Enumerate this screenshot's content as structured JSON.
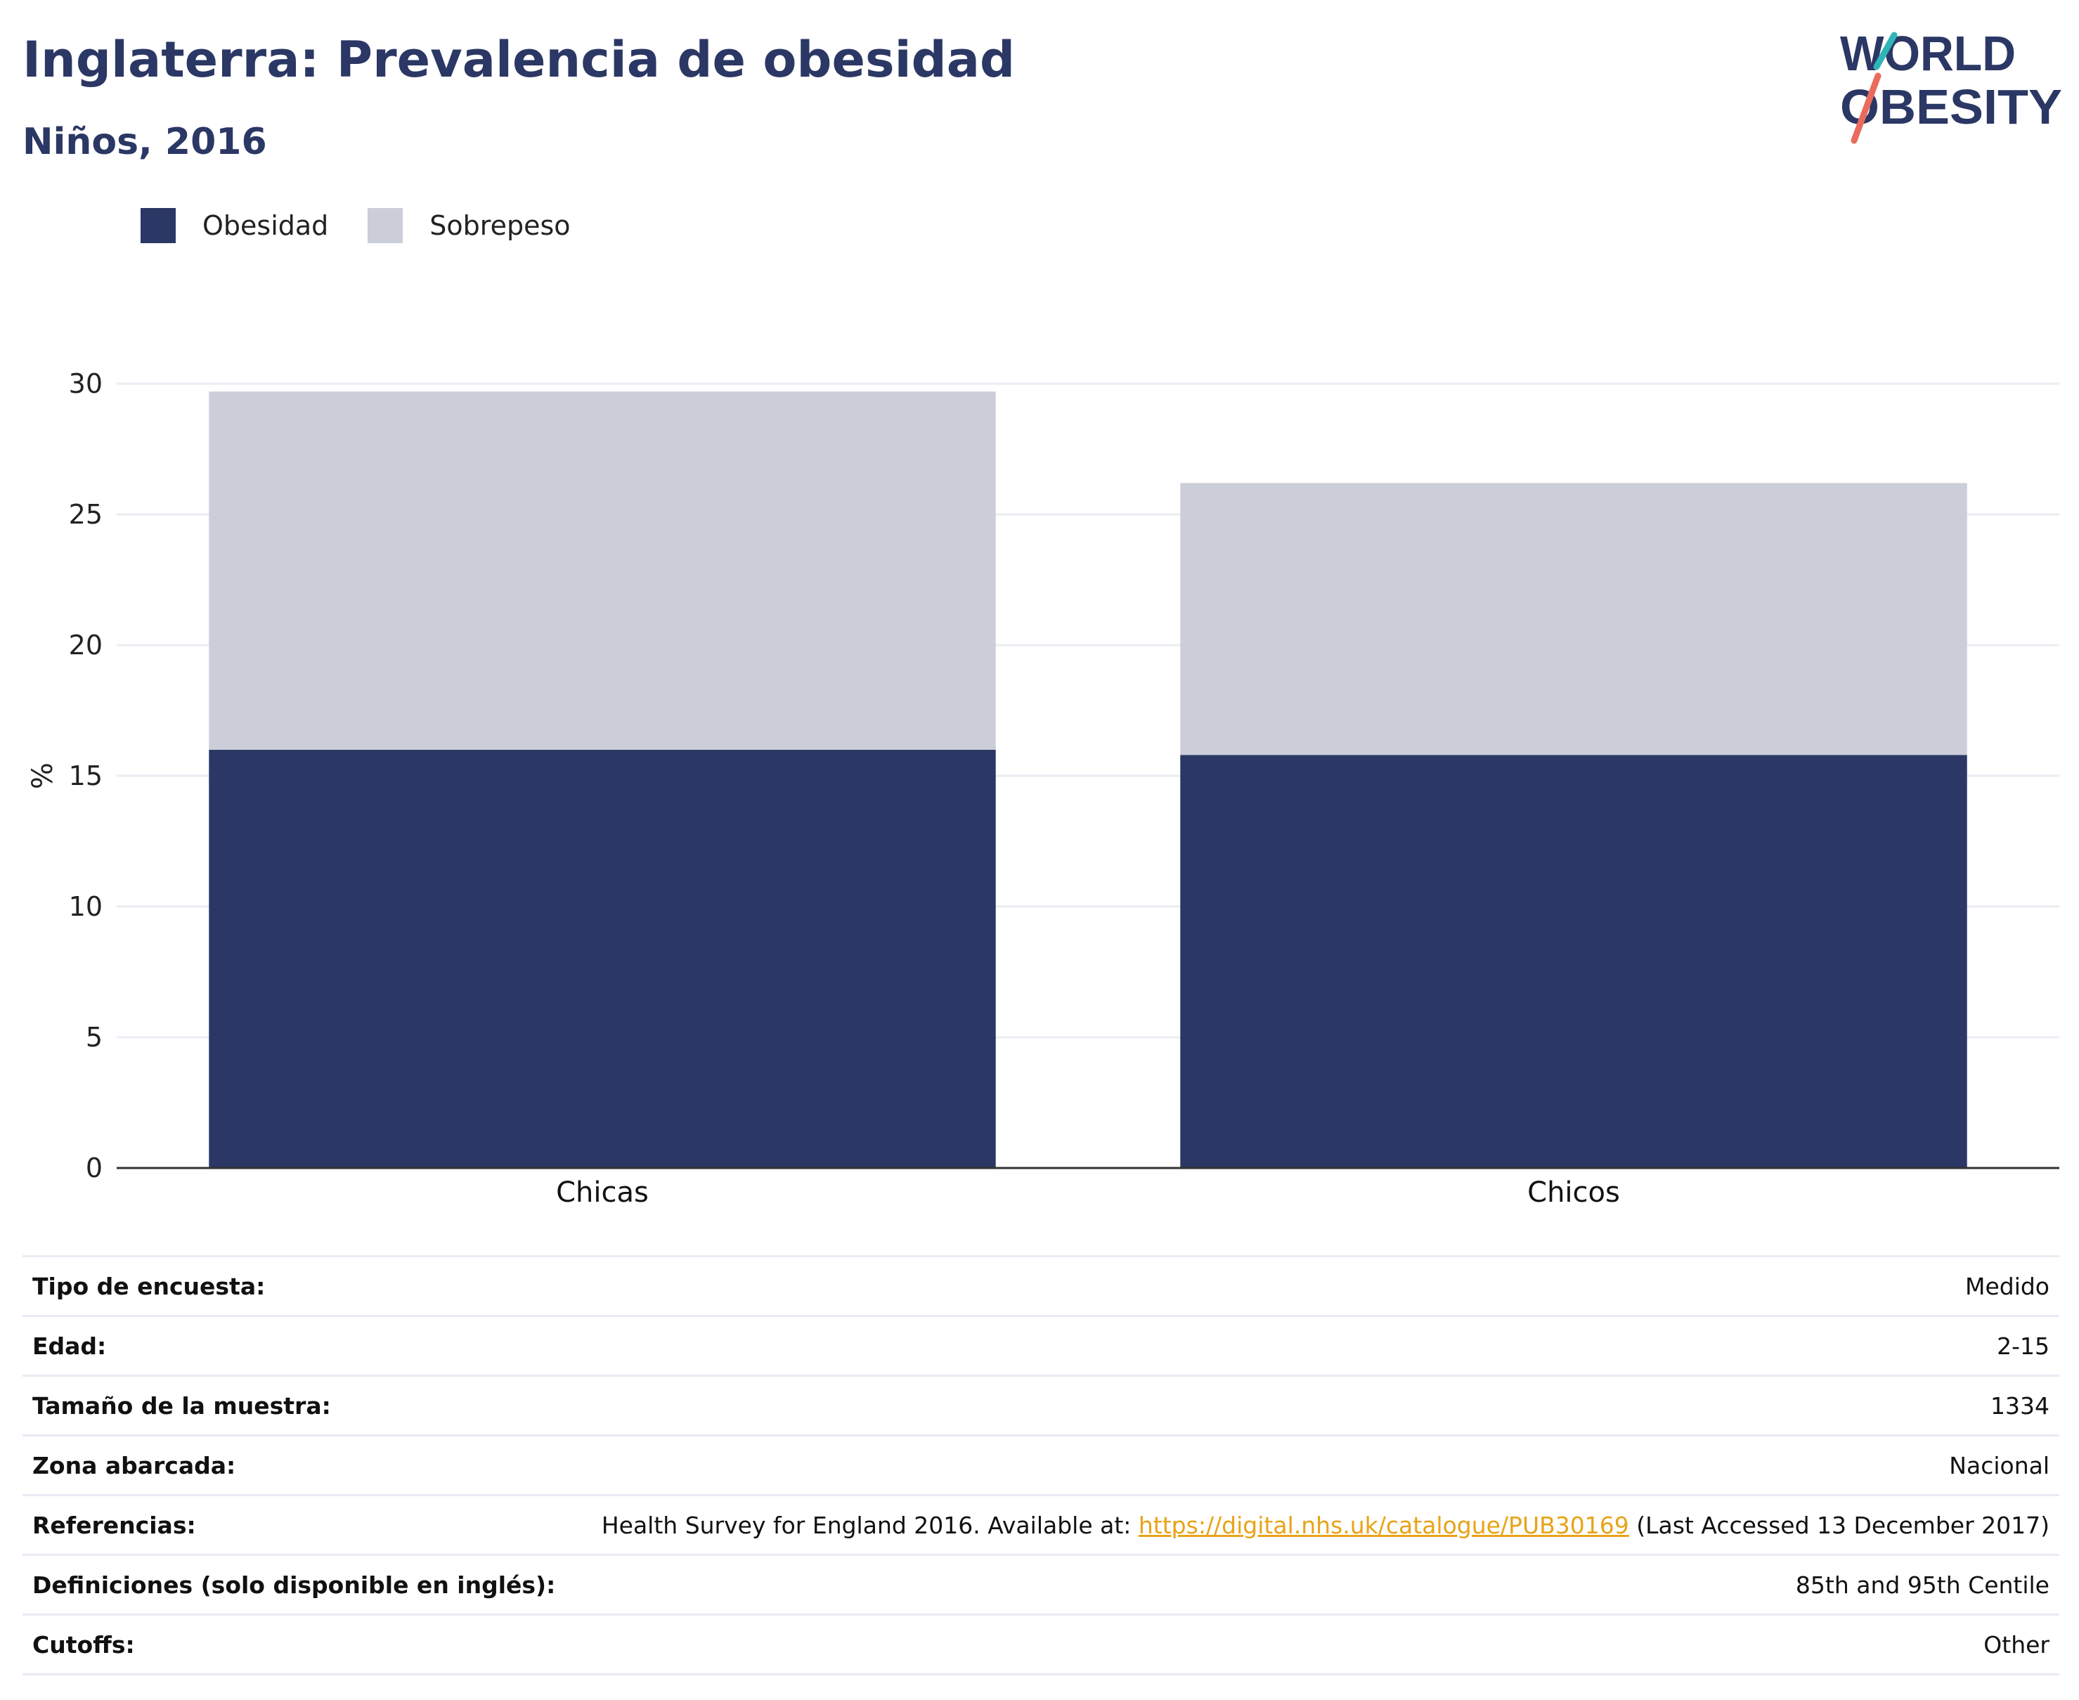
{
  "header": {
    "title": "Inglaterra: Prevalencia de obesidad",
    "subtitle": "Niños, 2016"
  },
  "logo": {
    "line1": "WORLD",
    "line2": "OBESITY"
  },
  "colors": {
    "title": "#2b3764",
    "obesity": "#2b3764",
    "overweight": "#cbcdd8",
    "grid": "#e9ecf3",
    "link": "#e8a317",
    "logo_teal": "#2fb5b9",
    "logo_coral": "#ea6b5e"
  },
  "chart_data": {
    "type": "bar",
    "stacked": true,
    "categories": [
      "Chicas",
      "Chicos"
    ],
    "series": [
      {
        "name": "Obesidad",
        "values": [
          16.0,
          15.8
        ]
      },
      {
        "name": "Sobrepeso",
        "values": [
          13.7,
          10.4
        ]
      }
    ],
    "ylabel": "%",
    "ylim": [
      0,
      30
    ],
    "yticks": [
      0,
      5,
      10,
      15,
      20,
      25,
      30
    ],
    "grid": true,
    "legend_position": "top-left"
  },
  "details": [
    {
      "label": "Tipo de encuesta:",
      "value": "Medido"
    },
    {
      "label": "Edad:",
      "value": "2-15"
    },
    {
      "label": "Tamaño de la muestra:",
      "value": "1334"
    },
    {
      "label": "Zona abarcada:",
      "value": "Nacional"
    },
    {
      "label": "Referencias:",
      "value_prefix": "Health Survey for England 2016. Available at: ",
      "link": "https://digital.nhs.uk/catalogue/PUB30169",
      "value_suffix": " (Last Accessed 13 December 2017)"
    },
    {
      "label": "Definiciones (solo disponible en inglés):",
      "value": "85th and 95th Centile"
    },
    {
      "label": "Cutoffs:",
      "value": "Other"
    }
  ]
}
